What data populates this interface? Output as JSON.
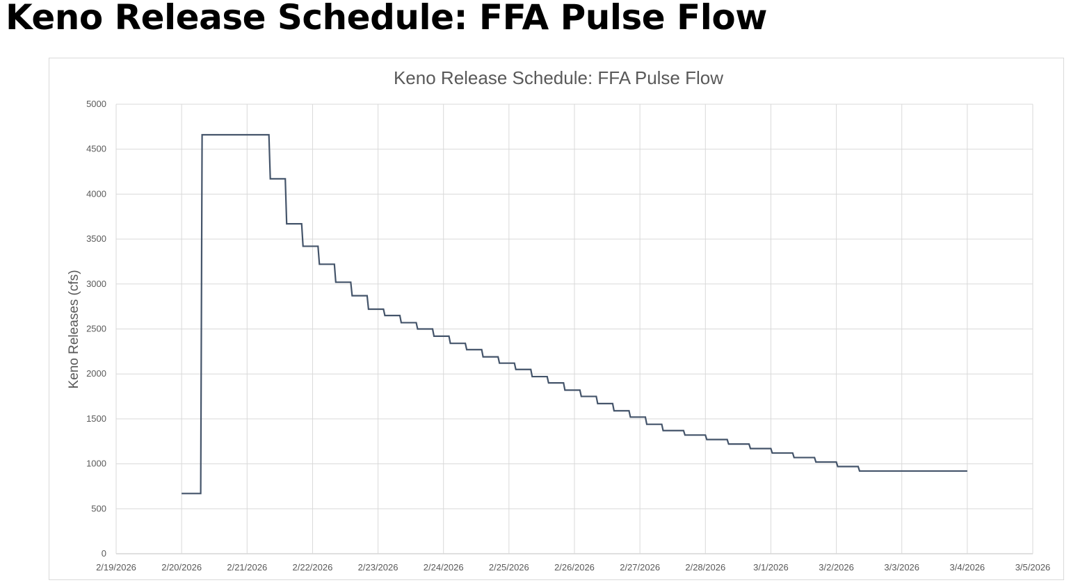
{
  "page_title": "Keno Release Schedule: FFA Pulse Flow",
  "chart_data": {
    "type": "line",
    "title": "Keno Release Schedule: FFA Pulse Flow",
    "xlabel": "",
    "ylabel": "Keno Releases (cfs)",
    "xlim": [
      "2/19/2026",
      "3/5/2026"
    ],
    "ylim": [
      0,
      5000
    ],
    "y_ticks": [
      0,
      500,
      1000,
      1500,
      2000,
      2500,
      3000,
      3500,
      4000,
      4500,
      5000
    ],
    "x_ticks": [
      "2/19/2026",
      "2/20/2026",
      "2/21/2026",
      "2/22/2026",
      "2/23/2026",
      "2/24/2026",
      "2/25/2026",
      "2/26/2026",
      "2/27/2026",
      "2/28/2026",
      "3/1/2026",
      "3/2/2026",
      "3/3/2026",
      "3/4/2026",
      "3/5/2026"
    ],
    "grid": true,
    "legend": "none",
    "line_color": "#44546a",
    "step_series": [
      [
        "2/20/2026 00:00",
        670
      ],
      [
        "2/20/2026 07:00",
        4660
      ],
      [
        "2/21/2026 08:00",
        4170
      ],
      [
        "2/21/2026 14:00",
        3670
      ],
      [
        "2/21/2026 20:00",
        3420
      ],
      [
        "2/22/2026 02:00",
        3220
      ],
      [
        "2/22/2026 08:00",
        3020
      ],
      [
        "2/22/2026 14:00",
        2870
      ],
      [
        "2/22/2026 20:00",
        2720
      ],
      [
        "2/23/2026 02:00",
        2650
      ],
      [
        "2/23/2026 08:00",
        2570
      ],
      [
        "2/23/2026 14:00",
        2500
      ],
      [
        "2/23/2026 20:00",
        2420
      ],
      [
        "2/24/2026 02:00",
        2340
      ],
      [
        "2/24/2026 08:00",
        2270
      ],
      [
        "2/24/2026 14:00",
        2190
      ],
      [
        "2/24/2026 20:00",
        2120
      ],
      [
        "2/25/2026 02:00",
        2050
      ],
      [
        "2/25/2026 08:00",
        1970
      ],
      [
        "2/25/2026 14:00",
        1900
      ],
      [
        "2/25/2026 20:00",
        1820
      ],
      [
        "2/26/2026 02:00",
        1750
      ],
      [
        "2/26/2026 08:00",
        1670
      ],
      [
        "2/26/2026 14:00",
        1590
      ],
      [
        "2/26/2026 20:00",
        1520
      ],
      [
        "2/27/2026 02:00",
        1440
      ],
      [
        "2/27/2026 08:00",
        1370
      ],
      [
        "2/27/2026 16:00",
        1320
      ],
      [
        "2/28/2026 00:00",
        1270
      ],
      [
        "2/28/2026 08:00",
        1220
      ],
      [
        "2/28/2026 16:00",
        1170
      ],
      [
        "3/1/2026 00:00",
        1120
      ],
      [
        "3/1/2026 08:00",
        1070
      ],
      [
        "3/1/2026 16:00",
        1020
      ],
      [
        "3/2/2026 00:00",
        970
      ],
      [
        "3/2/2026 08:00",
        920
      ],
      [
        "3/4/2026 00:00",
        920
      ]
    ]
  }
}
